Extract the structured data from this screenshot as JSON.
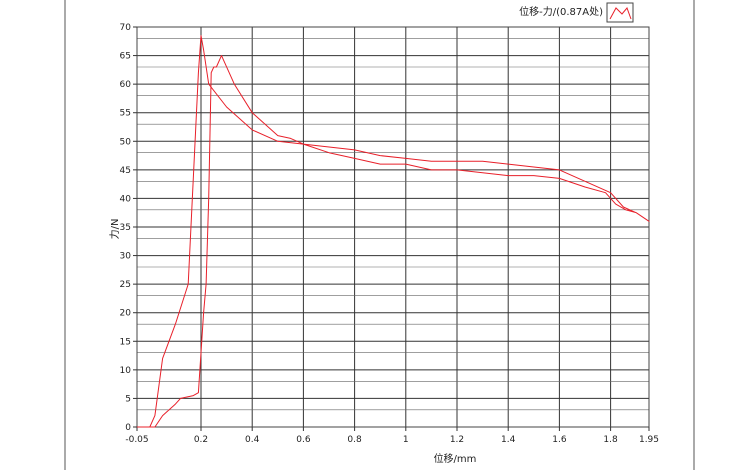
{
  "chart_data": {
    "type": "line",
    "xlabel": "位移/mm",
    "ylabel": "力/N",
    "xlim": [
      -0.05,
      1.95
    ],
    "ylim": [
      0,
      70
    ],
    "x_ticks": [
      -0.05,
      0.2,
      0.4,
      0.6,
      0.8,
      1,
      1.2,
      1.4,
      1.6,
      1.8,
      1.95
    ],
    "x_tick_labels": [
      "-0.05",
      "0.2",
      "0.4",
      "0.6",
      "0.8",
      "1",
      "1.2",
      "1.4",
      "1.6",
      "1.8",
      "1.95"
    ],
    "y_ticks": [
      0,
      5,
      10,
      15,
      20,
      25,
      30,
      35,
      40,
      45,
      50,
      55,
      60,
      65,
      70
    ],
    "y_tick_labels": [
      "0",
      "5",
      "10",
      "15",
      "20",
      "25",
      "30",
      "35",
      "40",
      "45",
      "50",
      "55",
      "60",
      "65",
      "70"
    ],
    "grid": true,
    "legend_position": "top-right",
    "color": "#e8202a",
    "series": [
      {
        "name": "位移-力/(0.87A处)",
        "x": [
          -0.05,
          0.0,
          0.02,
          0.05,
          0.1,
          0.15,
          0.19,
          0.2,
          0.21,
          0.23,
          0.3,
          0.4,
          0.5,
          0.6,
          0.7,
          0.8,
          0.9,
          1.0,
          1.1,
          1.2,
          1.3,
          1.4,
          1.5,
          1.6,
          1.7,
          1.78,
          1.82,
          1.86,
          1.9,
          1.95,
          1.9,
          1.85,
          1.8,
          1.7,
          1.6,
          1.5,
          1.4,
          1.3,
          1.2,
          1.1,
          1.0,
          0.9,
          0.8,
          0.7,
          0.6,
          0.55,
          0.5,
          0.4,
          0.33,
          0.28,
          0.26,
          0.25,
          0.24,
          0.23,
          0.22,
          0.21,
          0.19,
          0.17,
          0.12,
          0.1,
          0.05,
          0.02,
          -0.05
        ],
        "y": [
          0,
          0,
          2,
          12,
          18,
          25,
          62,
          68.5,
          66,
          60,
          56,
          52,
          50,
          49.5,
          48,
          47,
          46,
          46,
          45,
          45,
          44.5,
          44,
          44,
          43.5,
          42,
          41,
          39,
          38,
          37.5,
          36,
          37.5,
          38.5,
          41,
          43,
          45,
          45.5,
          46,
          46.5,
          46.5,
          46.5,
          47,
          47.5,
          48.5,
          49,
          49.5,
          50.5,
          51,
          55,
          60,
          65,
          63,
          63,
          62,
          40,
          25,
          20,
          6,
          5.5,
          5,
          4,
          2,
          0,
          0
        ]
      }
    ]
  }
}
